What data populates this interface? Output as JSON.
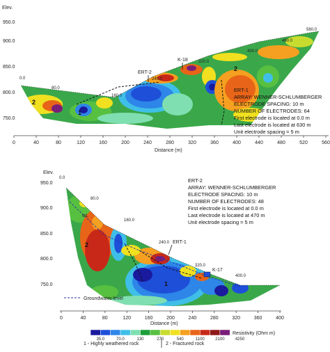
{
  "panel1": {
    "elev_label": "Elev.",
    "y_ticks": [
      "950.0",
      "900.0",
      "850.0",
      "800.0",
      "750.0"
    ],
    "x_ticks": [
      "0",
      "40",
      "80",
      "120",
      "160",
      "200",
      "240",
      "280",
      "320",
      "360",
      "400",
      "440",
      "480",
      "520",
      "560"
    ],
    "x_label": "Distance (m)",
    "surface_labels": [
      "0.0",
      "80.0",
      "160.0",
      "240.0",
      "320.0",
      "400.0",
      "480.0",
      "560.0"
    ],
    "markers": [
      "ERT-2",
      "K-18"
    ],
    "zone_labels": [
      "2",
      "1",
      "2"
    ],
    "info": {
      "title": "ERT-1",
      "array": "ARRAY: WENNER-SCHLUMBERGER",
      "spacing": "ELECTRODE SPACING: 10 m",
      "count": "NUMBER OF ELECTRODES: 64",
      "first": "First electrode is located at 0.0 m",
      "last": "Last electrode is located at 630 m",
      "unit": "Unit electrode spacing = 5 m"
    }
  },
  "panel2": {
    "elev_label": "Elev.",
    "y_ticks": [
      "950.0",
      "900.0",
      "850.0",
      "800.0",
      "750.0"
    ],
    "x_ticks": [
      "0",
      "40",
      "80",
      "120",
      "160",
      "200",
      "240",
      "280",
      "320",
      "360",
      "400"
    ],
    "x_label": "Distance (m)",
    "surface_labels": [
      "0.0",
      "80.0",
      "160.0",
      "240.0",
      "320.0",
      "400.0"
    ],
    "markers": [
      "ERT-1",
      "K-17"
    ],
    "zone_labels": [
      "2",
      "1"
    ],
    "wl_label": "WL",
    "groundwater_label": "Groundwater level",
    "info": {
      "title": "ERT-2",
      "array": "ARRAY: WENNER-SCHLUMBERGER",
      "spacing": "ELECTRODE SPACING: 10 m",
      "count": "NUMBER OF ELECTRODES: 48",
      "first": "First electrode is located at 0.0 m",
      "last": "Last electrode is located at 470 m",
      "unit": "Unit electrode spacing = 5 m"
    }
  },
  "legend": {
    "values": [
      "35.0",
      "70.0",
      "130",
      "270",
      "540",
      "1100",
      "2100",
      "4250"
    ],
    "colors": [
      "#1a1a9e",
      "#1e4fd8",
      "#2e86e8",
      "#3fbfe8",
      "#7fdfb0",
      "#1e9e3a",
      "#58c040",
      "#c8dc30",
      "#f0e020",
      "#f5a020",
      "#e86418",
      "#c82818",
      "#8e1818",
      "#7a1e78"
    ],
    "unit_label": "Resistivity (Ohm m)",
    "class1": "1 - Highly weathered rock",
    "class2": "2 - Fractured rock"
  }
}
